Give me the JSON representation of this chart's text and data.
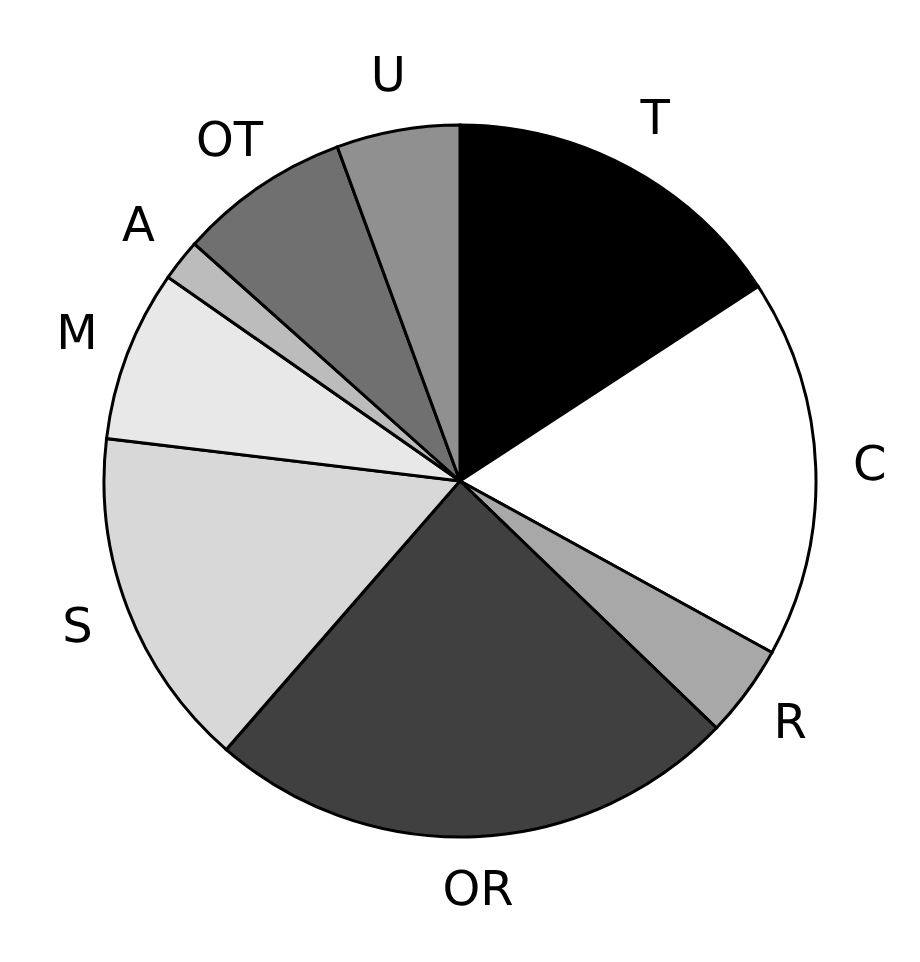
{
  "chart_data": {
    "type": "pie",
    "categories": [
      "T",
      "C",
      "R",
      "OR",
      "S",
      "M",
      "A",
      "OT",
      "U"
    ],
    "values": [
      15.8,
      17.2,
      4.2,
      24.2,
      15.5,
      7.8,
      1.9,
      7.8,
      5.6
    ],
    "colors": [
      "#000000",
      "#ffffff",
      "#a8a8a8",
      "#404040",
      "#d8d8d8",
      "#e8e8e8",
      "#bcbcbc",
      "#707070",
      "#909090"
    ]
  }
}
